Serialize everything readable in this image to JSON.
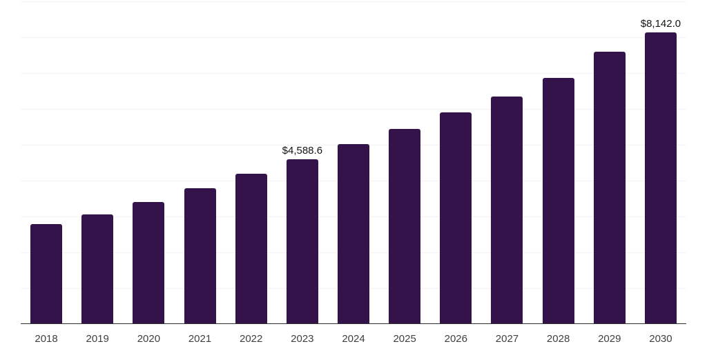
{
  "chart_data": {
    "type": "bar",
    "title": "",
    "xlabel": "",
    "ylabel": "",
    "categories": [
      "2018",
      "2019",
      "2020",
      "2021",
      "2022",
      "2023",
      "2024",
      "2025",
      "2026",
      "2027",
      "2028",
      "2029",
      "2030"
    ],
    "values": [
      2790,
      3060,
      3400,
      3790,
      4190,
      4588.6,
      5020,
      5440,
      5905,
      6345,
      6865,
      7600,
      8142.0
    ],
    "data_labels": [
      {
        "index": 5,
        "text": "$4,588.6"
      },
      {
        "index": 12,
        "text": "$8,142.0"
      }
    ],
    "ylim": [
      0,
      9000
    ],
    "gridline_step": 1000,
    "grid": true,
    "y_tick_labels_visible": false,
    "legend_position": "none"
  },
  "colors": {
    "background": "#ffffff",
    "bar": "#34124a",
    "gridline": "#f2f2f2",
    "axis_line": "#2e2e2e",
    "x_tick_label": "#3f3f3f",
    "data_label": "#141414"
  }
}
